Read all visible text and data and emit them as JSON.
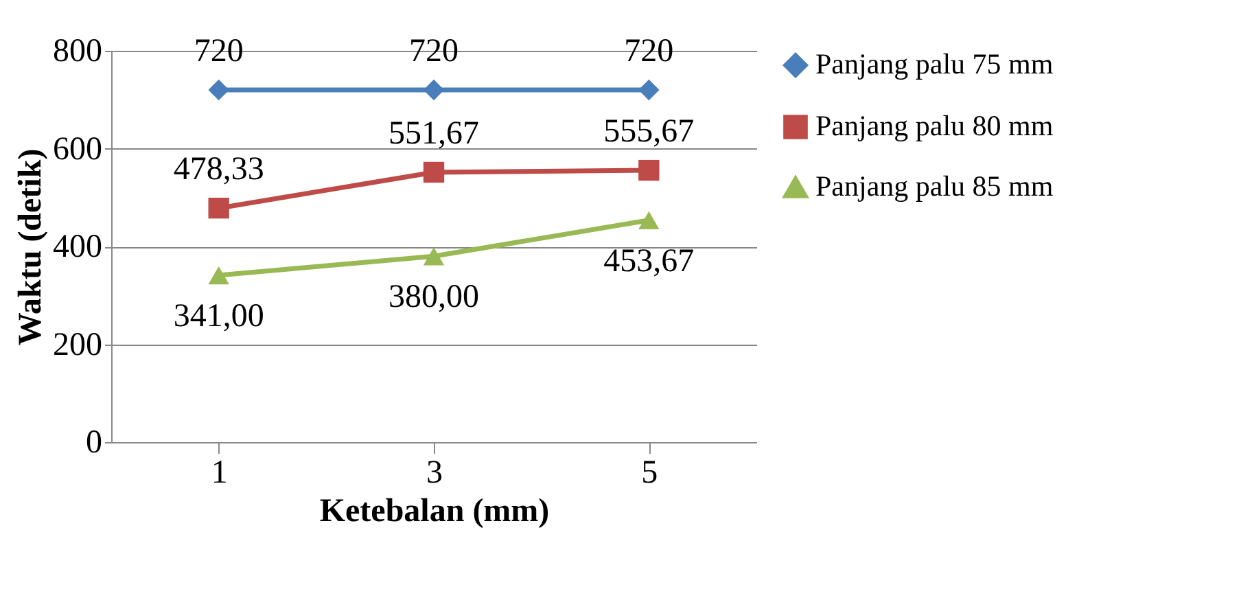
{
  "chart_data": {
    "type": "line",
    "xlabel": "Ketebalan (mm)",
    "ylabel": "Waktu (detik)",
    "categories": [
      "1",
      "3",
      "5"
    ],
    "ylim": [
      0,
      800
    ],
    "yticks": [
      0,
      200,
      400,
      600,
      800
    ],
    "grid": "y",
    "legend": "right",
    "series": [
      {
        "name": "Panjang palu 75 mm",
        "color": "#4a7ebb",
        "marker": "diamond",
        "values": [
          720,
          720,
          720
        ],
        "value_labels": [
          "720",
          "720",
          "720"
        ]
      },
      {
        "name": "Panjang palu 80 mm",
        "color": "#be4b48",
        "marker": "square",
        "values": [
          478.33,
          551.67,
          555.67
        ],
        "value_labels": [
          "478,33",
          "551,67",
          "555,67"
        ]
      },
      {
        "name": "Panjang palu 85 mm",
        "color": "#98b954",
        "marker": "triangle",
        "values": [
          341.0,
          380.0,
          453.67
        ],
        "value_labels": [
          "341,00",
          "380,00",
          "453,67"
        ]
      }
    ]
  }
}
